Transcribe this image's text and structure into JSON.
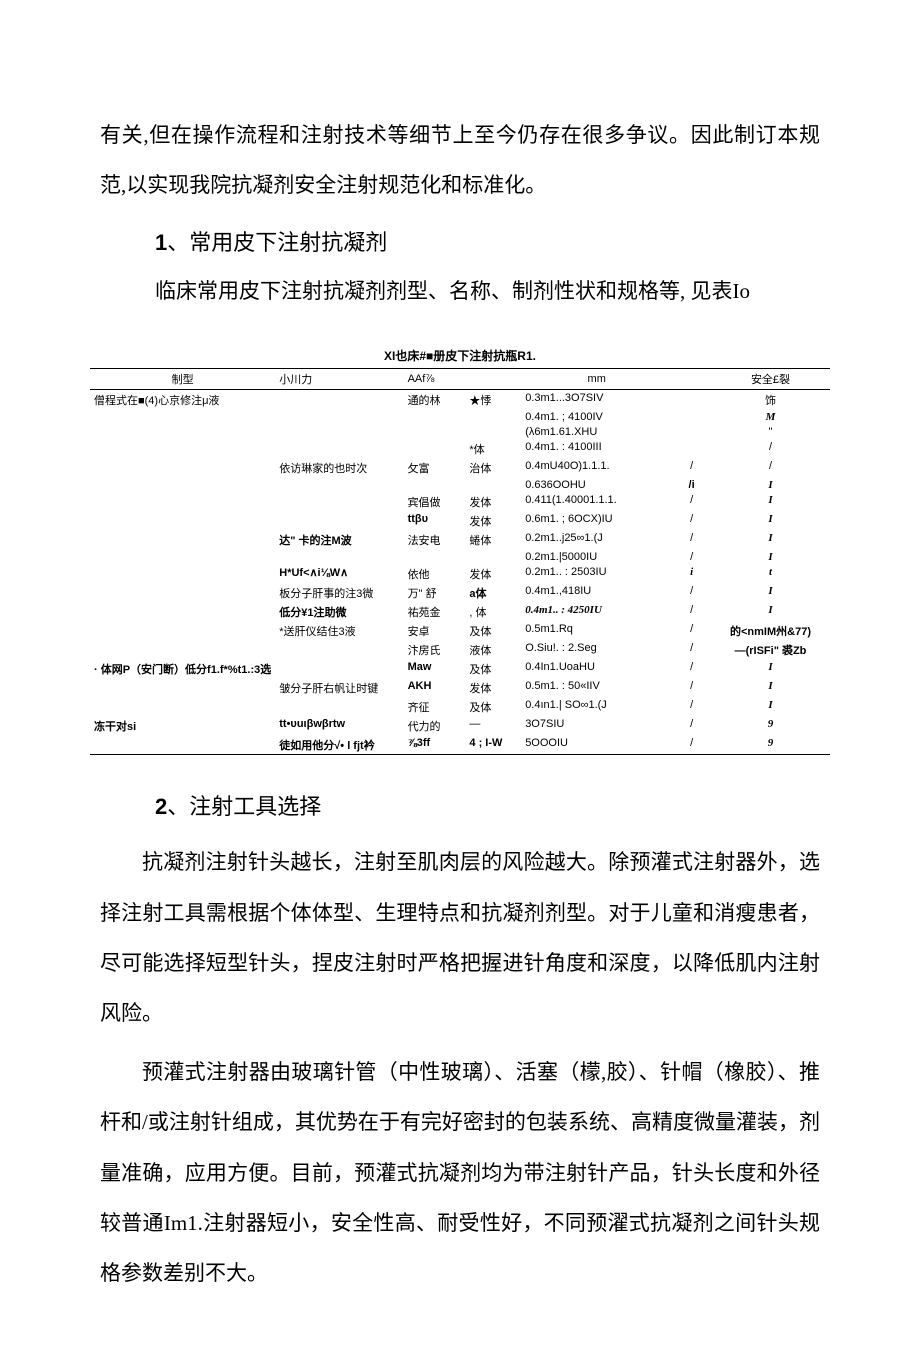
{
  "intro": "有关,但在操作流程和注射技术等细节上至今仍存在很多争议。因此制订本规范,以实现我院抗凝剂安全注射规范化和标准化。",
  "sections": {
    "s1": {
      "num": "1",
      "sep": "、",
      "title": "常用皮下注射抗凝剂",
      "lead": "临床常用皮下注射抗凝剂剂型、名称、制剂性状和规格等,  见表Io"
    },
    "s2": {
      "num": "2",
      "sep": "、",
      "title": "注射工具选择",
      "p1": "抗凝剂注射针头越长，注射至肌肉层的风险越大。除预灌式注射器外，选择注射工具需根据个体体型、生理特点和抗凝剂剂型。对于儿童和消瘦患者，尽可能选择短型针头，捏皮注射时严格把握进针角度和深度，以降低肌内注射风险。",
      "p2": "预灌式注射器由玻璃针管（中性玻璃）、活塞（檬,胶）、针帽（橡胶）、推杆和/或注射针组成，其优势在于有完好密封的包装系统、高精度微量灌装，剂量准确，应用方便。目前，预灌式抗凝剂均为带注射针产品，针头长度和外径较普通Im1.注射器短小，安全性高、耐受性好，不同预濯式抗凝剂之间针头规格参数差别不大。"
    }
  },
  "table": {
    "title": "XI也床#■册皮下注射抗瓶R1.",
    "headers": {
      "c1": "制型",
      "c2": "小川力",
      "c3": "AAf⅞",
      "c4": "",
      "c5": "mm",
      "c6": "",
      "c7": "安全£裂"
    },
    "rows": [
      {
        "c1": "僧程式在■(4)心京修注μ液",
        "c2": "",
        "c3": "通的林",
        "c4": "★悸",
        "c5": "0.3m1...3O7SIV",
        "c6": "",
        "c7": "饰"
      },
      {
        "c1": "",
        "c2": "",
        "c3": "",
        "c4": "",
        "c5": "0.4m1. ; 4100IV",
        "c6": "",
        "c7": "M",
        "c7cls": "ital"
      },
      {
        "c1": "",
        "c2": "",
        "c3": "",
        "c4": "",
        "c5": "(λ6m1.61.XHU",
        "c6": "",
        "c7": "\""
      },
      {
        "c1": "",
        "c2": "",
        "c3": "",
        "c4": "*体",
        "c5": "0.4m1. : 4100III",
        "c6": "",
        "c7": "/"
      },
      {
        "c1": "",
        "c2": "依访琳家的也时次",
        "c3": "攵富",
        "c4": "治体",
        "c5": "0.4mU40O)1.1.1.",
        "c6": "/",
        "c7": "/"
      },
      {
        "c1": "",
        "c2": "",
        "c3": "",
        "c4": "",
        "c5": "0.636OOHU",
        "c6": "/i",
        "c6cls": "bold",
        "c7": "I",
        "c7cls": "ital"
      },
      {
        "c1": "",
        "c2": "",
        "c3": "宾倡做",
        "c4": "发体",
        "c5": "0.411(1.40001.1.1.",
        "c6": "/",
        "c7": "I",
        "c7cls": "ital"
      },
      {
        "c1": "",
        "c2": "",
        "c3": "ttβυ",
        "c3cls": "bold",
        "c4": "发体",
        "c5": "0.6m1. ; 6OCX)IU",
        "c6": "/",
        "c7": "I",
        "c7cls": "ital"
      },
      {
        "c1": "",
        "c2": "达\" 卡的注M波",
        "c2cls": "bold",
        "c3": "法安电",
        "c4": "蜷体",
        "c5": "0.2m1..j25∞1.(J",
        "c6": "/",
        "c7": "I",
        "c7cls": "ital"
      },
      {
        "c1": "",
        "c2": "",
        "c3": "",
        "c4": "",
        "c5": "0.2m1.|5000IU",
        "c6": "/",
        "c7": "I",
        "c7cls": "ital"
      },
      {
        "c1": "",
        "c2": "H*Uf<∧i⅛W∧",
        "c2cls": "bold",
        "c3": "依他",
        "c4": "发体",
        "c5": "0.2m1.. : 2503IU",
        "c6": "i",
        "c6cls": "ital",
        "c7": "t",
        "c7cls": "ital"
      },
      {
        "c1": "",
        "c2": "板分子肝事的注3微",
        "c3": "万\" 舒",
        "c4": "a体",
        "c4cls": "bold",
        "c5": "0.4m1.,418IU",
        "c6": "/",
        "c7": "I",
        "c7cls": "ital"
      },
      {
        "c1": "",
        "c2": "低分¥1注助微",
        "c2cls": "bold",
        "c3": "祐苑金",
        "c4": ", 体",
        "c5": "0.4m1.. : 4250IU",
        "c5cls": "ital",
        "c6": "/",
        "c7": "I",
        "c7cls": "ital"
      },
      {
        "c1": "",
        "c2": "*送肝仪结住3液",
        "c3": "安卓",
        "c4": "及体",
        "c5": "0.5m1.Rq",
        "c6": "/",
        "c7": "的<nmIM州&77)",
        "c7cls": "bold"
      },
      {
        "c1": "",
        "c2": "",
        "c3": "汴房氏",
        "c4": "液体",
        "c5": "O.Siu!. : 2.Seg",
        "c6": "/",
        "c7": "—(rISFi\" 裘Zb",
        "c7cls": "bold"
      },
      {
        "c1": "· 体网P（安门断）低分f1.f*%t1.:3选",
        "c1cls": "bold",
        "c2": "",
        "c3": "Maw",
        "c3cls": "bold",
        "c4": "及体",
        "c5": "0.4In1.UoaHU",
        "c6": "/",
        "c7": "I",
        "c7cls": "ital"
      },
      {
        "c1": "",
        "c2": "皱分子肝右帆让时键",
        "c3": "AKH",
        "c3cls": "bold",
        "c4": "发体",
        "c5": "0.5m1. : 50«IIV",
        "c6": "/",
        "c7": "I",
        "c7cls": "ital"
      },
      {
        "c1": "",
        "c2": "",
        "c3": "齐征",
        "c4": "及体",
        "c5": "0.4ın1.| SO∞1.(J",
        "c6": "/",
        "c7": "I",
        "c7cls": "ital"
      },
      {
        "c1": "冻干对si",
        "c1cls": "bold",
        "c2": "tt•υuιβwβrtw",
        "c2cls": "bold",
        "c3": "代力的",
        "c4": "—",
        "c5": "3O7SIU",
        "c6": "/",
        "c7": "9",
        "c7cls": "ital"
      },
      {
        "c1": "",
        "c2": "徒如用他分√• l fjt衿",
        "c2cls": "bold",
        "c3": "⅞3ff",
        "c3cls": "bold",
        "c4": "4 ; I-W",
        "c4cls": "bold",
        "c5": "5OOOIU",
        "c6": "/",
        "c7": "9",
        "c7cls": "ital",
        "last": true
      }
    ]
  }
}
